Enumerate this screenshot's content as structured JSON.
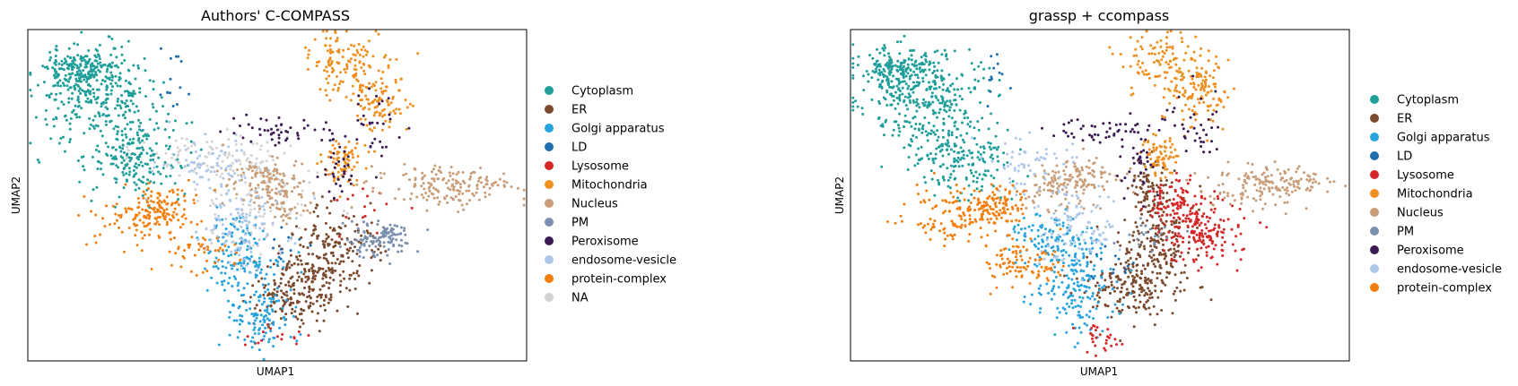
{
  "chart_data": [
    {
      "type": "scatter",
      "title": "Authors' C-COMPASS",
      "xlabel": "UMAP1",
      "ylabel": "UMAP2",
      "xlim": [
        0,
        100
      ],
      "ylim": [
        0,
        100
      ],
      "grid": false,
      "legend_position": "right",
      "series": [
        {
          "name": "Cytoplasm",
          "color": "#1f9e9a",
          "n": 650,
          "clusters": [
            [
              14,
              80,
              6,
              7,
              0.45
            ],
            [
              22,
              62,
              5,
              6,
              0.3
            ],
            [
              10,
              88,
              4,
              3,
              0.25
            ]
          ]
        },
        {
          "name": "ER",
          "color": "#7b4a2e",
          "n": 380,
          "clusters": [
            [
              57,
              24,
              5,
              5,
              0.45
            ],
            [
              62,
              36,
              4,
              6,
              0.35
            ],
            [
              52,
              16,
              4,
              4,
              0.2
            ]
          ]
        },
        {
          "name": "Golgi apparatus",
          "color": "#27a4dd",
          "n": 260,
          "clusters": [
            [
              46,
              13,
              3,
              5,
              0.45
            ],
            [
              43,
              28,
              4,
              4,
              0.35
            ],
            [
              41,
              38,
              3,
              4,
              0.2
            ]
          ]
        },
        {
          "name": "LD",
          "color": "#1f6fae",
          "n": 25,
          "clusters": [
            [
              29,
              85,
              1.5,
              5,
              0.5
            ],
            [
              52,
              34,
              4,
              3,
              0.5
            ]
          ]
        },
        {
          "name": "Lysosome",
          "color": "#d62728",
          "n": 30,
          "clusters": [
            [
              50,
              7,
              3,
              2,
              0.5
            ],
            [
              68,
              45,
              4,
              4,
              0.5
            ]
          ]
        },
        {
          "name": "Mitochondria",
          "color": "#ef8f1f",
          "n": 300,
          "clusters": [
            [
              63,
              90,
              4,
              5,
              0.4
            ],
            [
              70,
              80,
              3,
              6,
              0.35
            ],
            [
              63,
              60,
              2,
              3,
              0.25
            ]
          ]
        },
        {
          "name": "Nucleus",
          "color": "#c89d78",
          "n": 330,
          "clusters": [
            [
              84,
              53,
              7,
              3,
              0.5
            ],
            [
              47,
              55,
              4,
              3,
              0.3
            ],
            [
              51,
              48,
              3,
              3,
              0.2
            ]
          ]
        },
        {
          "name": "PM",
          "color": "#7b8fae",
          "n": 120,
          "clusters": [
            [
              69,
              36,
              3,
              3,
              0.6
            ],
            [
              73,
              38,
              2,
              2,
              0.4
            ]
          ]
        },
        {
          "name": "Peroxisome",
          "color": "#3b1a54",
          "n": 110,
          "clusters": [
            [
              50,
              70,
              5,
              2,
              0.4
            ],
            [
              69,
              70,
              3,
              6,
              0.3
            ],
            [
              62,
              58,
              2,
              6,
              0.3
            ]
          ]
        },
        {
          "name": "endosome-vesicle",
          "color": "#aec7e8",
          "n": 180,
          "clusters": [
            [
              43,
              40,
              4,
              6,
              0.6
            ],
            [
              36,
              58,
              4,
              5,
              0.4
            ]
          ]
        },
        {
          "name": "protein-complex",
          "color": "#f27f10",
          "n": 220,
          "clusters": [
            [
              22,
              44,
              5,
              4,
              0.5
            ],
            [
              29,
              47,
              3,
              3,
              0.3
            ],
            [
              35,
              32,
              4,
              3,
              0.2
            ]
          ]
        },
        {
          "name": "NA",
          "color": "#d3d3d3",
          "n": 200,
          "clusters": [
            [
              38,
              62,
              8,
              4,
              0.6
            ],
            [
              46,
              45,
              6,
              6,
              0.4
            ]
          ]
        }
      ]
    },
    {
      "type": "scatter",
      "title": "grassp + ccompass",
      "xlabel": "UMAP1",
      "ylabel": "UMAP2",
      "xlim": [
        0,
        100
      ],
      "ylim": [
        0,
        100
      ],
      "grid": false,
      "legend_position": "right",
      "series": [
        {
          "name": "Cytoplasm",
          "color": "#1f9e9a",
          "n": 650,
          "clusters": [
            [
              14,
              80,
              6,
              7,
              0.45
            ],
            [
              22,
              62,
              5,
              6,
              0.3
            ],
            [
              10,
              88,
              4,
              3,
              0.25
            ]
          ]
        },
        {
          "name": "ER",
          "color": "#7b4a2e",
          "n": 420,
          "clusters": [
            [
              57,
              22,
              5,
              5,
              0.45
            ],
            [
              62,
              36,
              4,
              6,
              0.35
            ],
            [
              60,
              52,
              2,
              5,
              0.2
            ]
          ]
        },
        {
          "name": "Golgi apparatus",
          "color": "#27a4dd",
          "n": 280,
          "clusters": [
            [
              45,
              20,
              4,
              6,
              0.5
            ],
            [
              43,
              33,
              4,
              4,
              0.3
            ],
            [
              38,
              38,
              3,
              3,
              0.2
            ]
          ]
        },
        {
          "name": "LD",
          "color": "#1f6fae",
          "n": 25,
          "clusters": [
            [
              29,
              85,
              1.5,
              5,
              0.5
            ],
            [
              52,
              30,
              3,
              3,
              0.5
            ]
          ]
        },
        {
          "name": "Lysosome",
          "color": "#d62728",
          "n": 280,
          "clusters": [
            [
              70,
              38,
              4,
              5,
              0.6
            ],
            [
              66,
              48,
              3,
              4,
              0.3
            ],
            [
              50,
              7,
              2,
              2,
              0.1
            ]
          ]
        },
        {
          "name": "Mitochondria",
          "color": "#ef8f1f",
          "n": 300,
          "clusters": [
            [
              63,
              90,
              4,
              5,
              0.4
            ],
            [
              70,
              80,
              3,
              6,
              0.35
            ],
            [
              62,
              62,
              2,
              3,
              0.25
            ]
          ]
        },
        {
          "name": "Nucleus",
          "color": "#c89d78",
          "n": 330,
          "clusters": [
            [
              84,
              53,
              7,
              3,
              0.5
            ],
            [
              47,
              55,
              4,
              3,
              0.3
            ],
            [
              40,
              52,
              3,
              3,
              0.2
            ]
          ]
        },
        {
          "name": "PM",
          "color": "#7b8fae",
          "n": 20,
          "clusters": [
            [
              60,
              38,
              3,
              3,
              1
            ]
          ]
        },
        {
          "name": "Peroxisome",
          "color": "#3b1a54",
          "n": 120,
          "clusters": [
            [
              50,
              70,
              5,
              2,
              0.4
            ],
            [
              69,
              72,
              3,
              6,
              0.3
            ],
            [
              58,
              60,
              2,
              5,
              0.3
            ]
          ]
        },
        {
          "name": "endosome-vesicle",
          "color": "#aec7e8",
          "n": 160,
          "clusters": [
            [
              45,
              40,
              4,
              6,
              0.6
            ],
            [
              36,
              58,
              4,
              5,
              0.4
            ]
          ]
        },
        {
          "name": "protein-complex",
          "color": "#f27f10",
          "n": 320,
          "clusters": [
            [
              22,
              44,
              5,
              4,
              0.4
            ],
            [
              29,
              47,
              3,
              3,
              0.3
            ],
            [
              34,
              30,
              4,
              4,
              0.3
            ]
          ]
        }
      ]
    }
  ]
}
